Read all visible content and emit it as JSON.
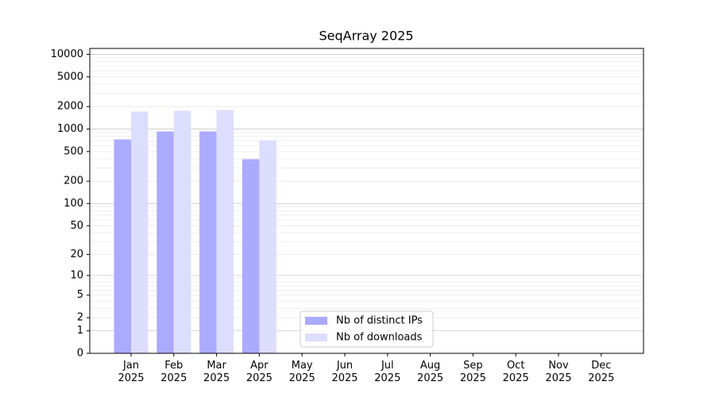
{
  "chart_data": {
    "type": "bar",
    "title": "SeqArray 2025",
    "categories": [
      "Jan\n2025",
      "Feb\n2025",
      "Mar\n2025",
      "Apr\n2025",
      "May\n2025",
      "Jun\n2025",
      "Jul\n2025",
      "Aug\n2025",
      "Sep\n2025",
      "Oct\n2025",
      "Nov\n2025",
      "Dec\n2025"
    ],
    "series": [
      {
        "name": "Nb of distinct IPs",
        "color": "#aaaaff",
        "values": [
          727,
          929,
          930,
          394,
          null,
          null,
          null,
          null,
          null,
          null,
          null,
          null
        ]
      },
      {
        "name": "Nb of downloads",
        "color": "#ddddff",
        "values": [
          1714,
          1757,
          1800,
          709,
          null,
          null,
          null,
          null,
          null,
          null,
          null,
          null
        ]
      }
    ],
    "yscale": "log1p",
    "ylim": [
      0,
      12000
    ],
    "yticks": [
      0,
      1,
      2,
      5,
      10,
      20,
      50,
      100,
      200,
      500,
      1000,
      2000,
      5000,
      10000
    ],
    "grid": true,
    "legend": "lower center"
  }
}
